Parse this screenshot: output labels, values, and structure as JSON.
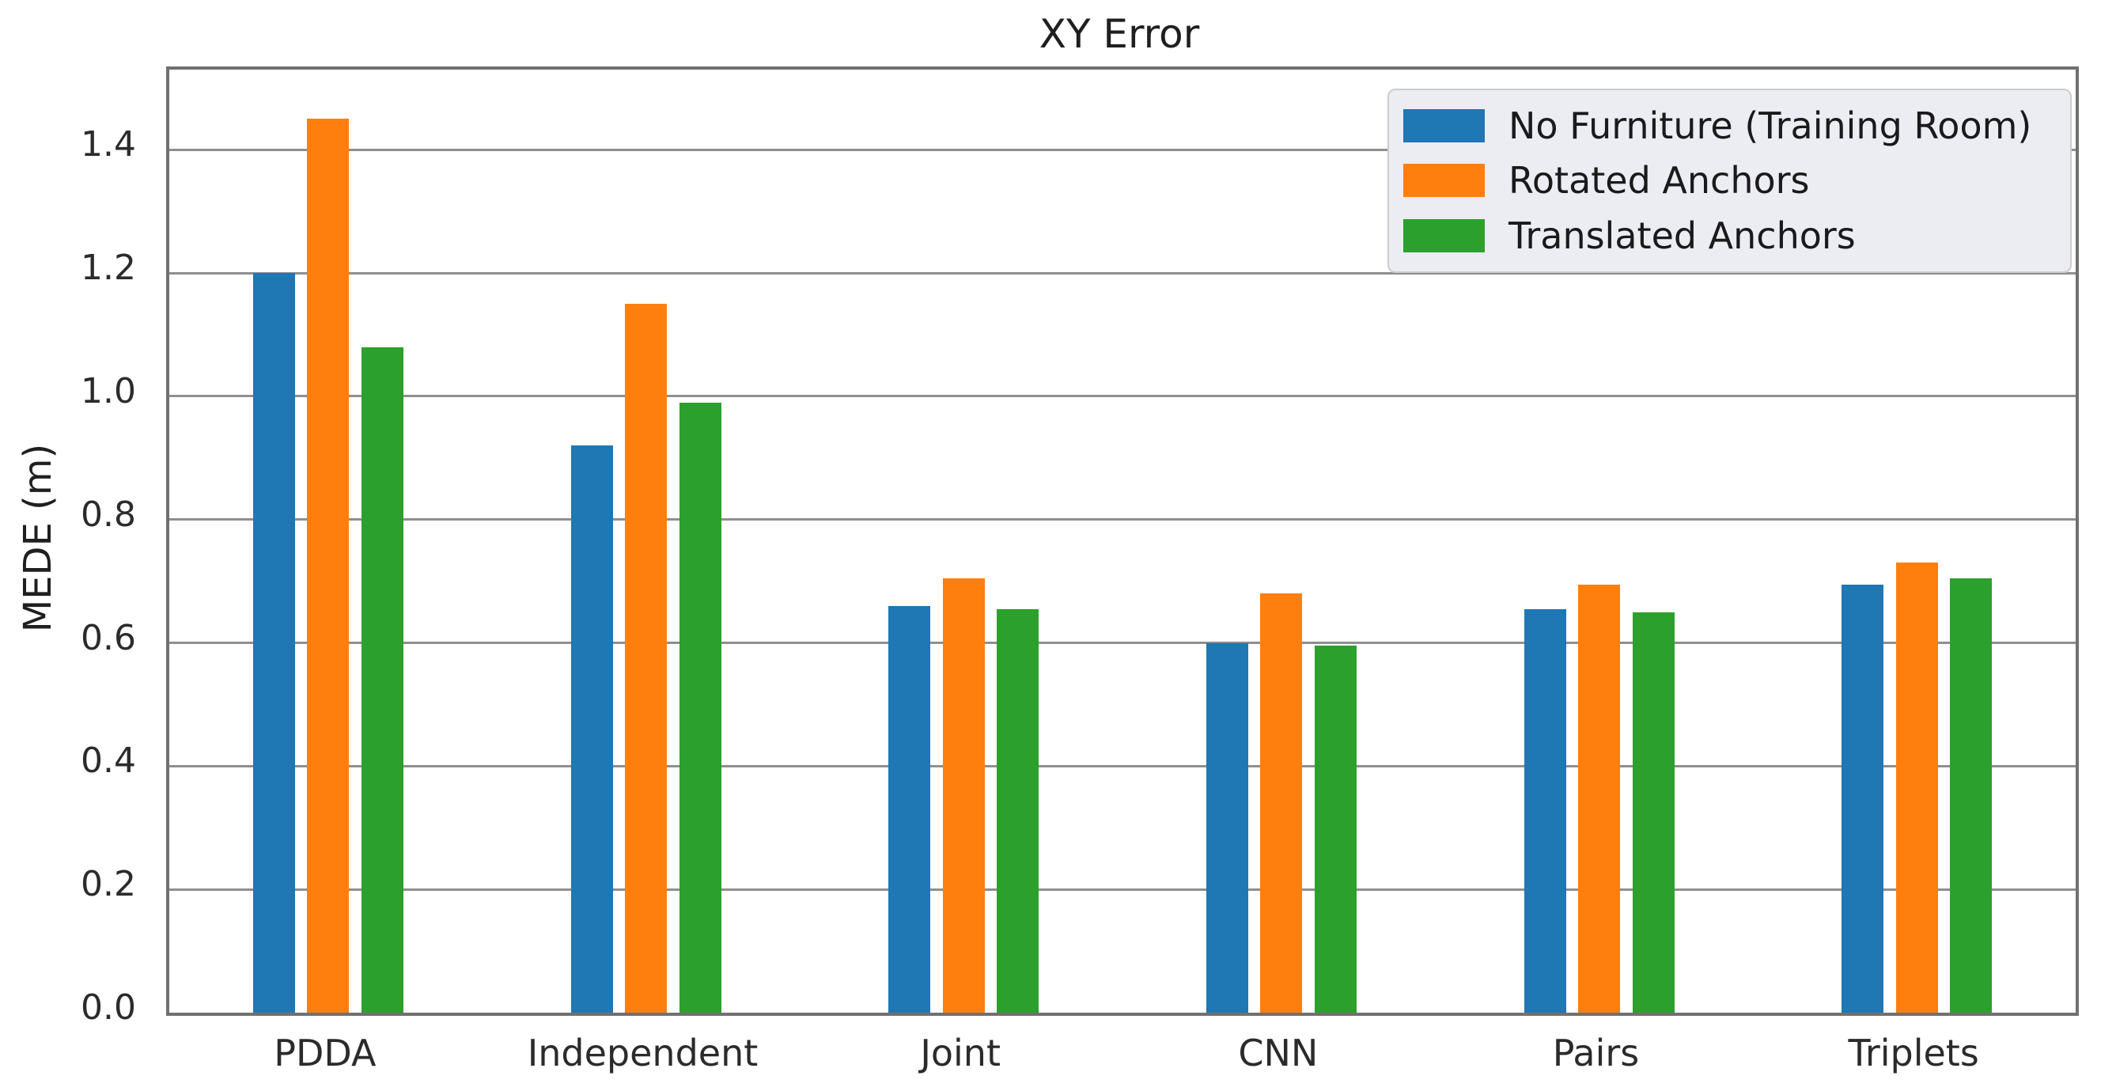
{
  "chart_data": {
    "type": "bar",
    "title": "XY Error",
    "xlabel": "",
    "ylabel": "MEDE (m)",
    "categories": [
      "PDDA",
      "Independent",
      "Joint",
      "CNN",
      "Pairs",
      "Triplets"
    ],
    "series": [
      {
        "name": "No Furniture (Training Room)",
        "color": "#1f77b4",
        "values": [
          1.2,
          0.92,
          0.66,
          0.6,
          0.655,
          0.695
        ]
      },
      {
        "name": "Rotated Anchors",
        "color": "#ff7f0e",
        "values": [
          1.45,
          1.15,
          0.705,
          0.68,
          0.695,
          0.73
        ]
      },
      {
        "name": "Translated Anchors",
        "color": "#2ca02c",
        "values": [
          1.08,
          0.99,
          0.655,
          0.595,
          0.65,
          0.705
        ]
      }
    ],
    "ylim": [
      0,
      1.53
    ],
    "yticks": [
      0.0,
      0.2,
      0.4,
      0.6,
      0.8,
      1.0,
      1.2,
      1.4
    ],
    "grid": true,
    "grid_color": "#8f8f8f",
    "spine_color": "#707070",
    "legend_position": "upper right",
    "legend_bg": "#ececf3"
  }
}
